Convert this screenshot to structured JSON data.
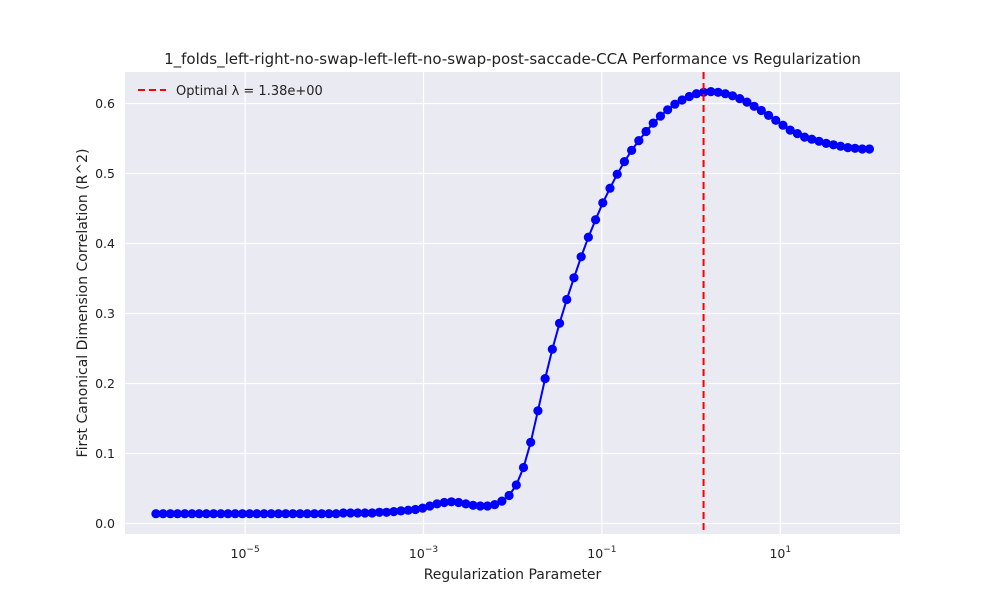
{
  "chart_data": {
    "type": "line",
    "title": "1_folds_left-right-no-swap-left-left-no-swap-post-saccade-CCA Performance vs Regularization",
    "xlabel": "Regularization Parameter",
    "ylabel": "First Canonical Dimension Correlation (R^2)",
    "x_scale": "log",
    "xlim": [
      4.5e-07,
      220
    ],
    "ylim": [
      -0.015,
      0.645
    ],
    "xticks": [
      {
        "value": 1e-05,
        "base": "10",
        "exp": "−5"
      },
      {
        "value": 0.001,
        "base": "10",
        "exp": "−3"
      },
      {
        "value": 0.1,
        "base": "10",
        "exp": "−1"
      },
      {
        "value": 10,
        "base": "10",
        "exp": "1"
      }
    ],
    "yticks": [
      0.0,
      0.1,
      0.2,
      0.3,
      0.4,
      0.5,
      0.6
    ],
    "ytick_labels": [
      "0.0",
      "0.1",
      "0.2",
      "0.3",
      "0.4",
      "0.5",
      "0.6"
    ],
    "grid": true,
    "legend": {
      "placement": "top-left",
      "label": "Optimal λ = 1.38e+00"
    },
    "optimal_lambda": 1.38,
    "x_range": {
      "min": 1e-06,
      "max": 100,
      "count": 100,
      "spacing": "log"
    },
    "series": [
      {
        "color": "#0000ff",
        "values": [
          0.014,
          0.014,
          0.014,
          0.014,
          0.014,
          0.014,
          0.014,
          0.014,
          0.014,
          0.014,
          0.014,
          0.014,
          0.014,
          0.014,
          0.014,
          0.014,
          0.014,
          0.014,
          0.014,
          0.014,
          0.014,
          0.014,
          0.014,
          0.014,
          0.014,
          0.014,
          0.015,
          0.015,
          0.015,
          0.015,
          0.015,
          0.016,
          0.016,
          0.017,
          0.018,
          0.019,
          0.02,
          0.022,
          0.025,
          0.028,
          0.03,
          0.031,
          0.03,
          0.028,
          0.026,
          0.025,
          0.025,
          0.027,
          0.032,
          0.04,
          0.055,
          0.08,
          0.116,
          0.161,
          0.207,
          0.249,
          0.286,
          0.32,
          0.351,
          0.381,
          0.409,
          0.434,
          0.458,
          0.479,
          0.499,
          0.517,
          0.533,
          0.547,
          0.56,
          0.572,
          0.582,
          0.591,
          0.599,
          0.605,
          0.61,
          0.614,
          0.616,
          0.617,
          0.616,
          0.614,
          0.611,
          0.607,
          0.602,
          0.596,
          0.59,
          0.583,
          0.576,
          0.569,
          0.562,
          0.557,
          0.552,
          0.549,
          0.546,
          0.543,
          0.541,
          0.539,
          0.537,
          0.536,
          0.535,
          0.535
        ]
      }
    ]
  },
  "colors": {
    "plot_background": "#eaeaf2",
    "grid": "#ffffff",
    "line": "#0000ff",
    "optimal_line": "#ff0000"
  }
}
